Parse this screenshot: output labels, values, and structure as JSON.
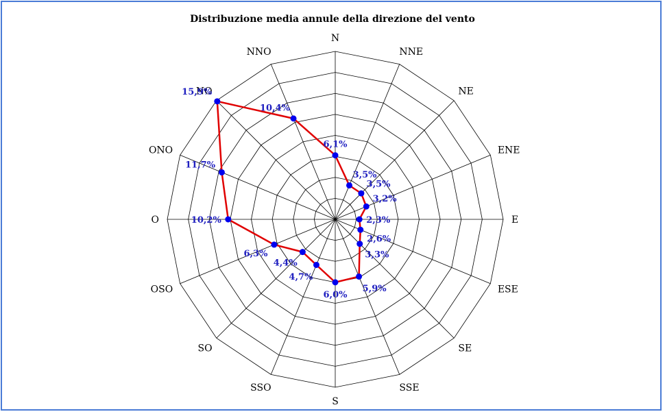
{
  "chart_data": {
    "type": "radar",
    "title": "Distribuzione media annule della direzione del vento",
    "directions": [
      "N",
      "NNE",
      "NE",
      "ENE",
      "E",
      "ESE",
      "SE",
      "SSE",
      "S",
      "SSO",
      "SO",
      "OSO",
      "O",
      "ONO",
      "NO",
      "NNO"
    ],
    "values": [
      6.1,
      3.5,
      3.5,
      3.2,
      2.3,
      2.6,
      3.3,
      5.9,
      6.0,
      4.7,
      4.4,
      6.3,
      10.2,
      11.7,
      15.9,
      10.4
    ],
    "value_labels": [
      "6,1%",
      "3,5%",
      "3,5%",
      "3,2%",
      "2,3%",
      "2,6%",
      "3,3%",
      "5,9%",
      "6,0%",
      "4,7%",
      "4,4%",
      "6,3%",
      "10,2%",
      "11,7%",
      "15,9%",
      "10,4%"
    ],
    "r_max": 16,
    "rings": 8,
    "line_color": "#e00000",
    "marker_color": "#0000ee",
    "label_color": "#2020c0"
  }
}
